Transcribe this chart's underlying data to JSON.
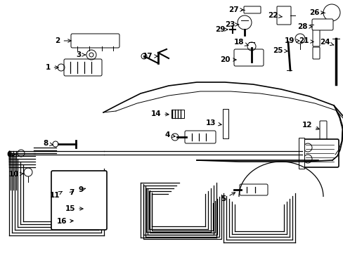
{
  "bg_color": "#ffffff",
  "fig_width": 4.89,
  "fig_height": 3.6,
  "dpi": 100,
  "car_arch_outer": {
    "x": [
      0.3,
      0.36,
      0.45,
      0.55,
      0.65,
      0.73,
      0.8,
      0.87,
      0.93,
      0.97,
      0.99
    ],
    "y": [
      0.87,
      0.89,
      0.9,
      0.89,
      0.86,
      0.82,
      0.76,
      0.69,
      0.61,
      0.52,
      0.43
    ]
  },
  "car_arch_inner": {
    "x": [
      0.34,
      0.4,
      0.5,
      0.59,
      0.67,
      0.74,
      0.81,
      0.87,
      0.92,
      0.96
    ],
    "y": [
      0.85,
      0.87,
      0.87,
      0.85,
      0.82,
      0.77,
      0.71,
      0.64,
      0.56,
      0.47
    ]
  },
  "car_rear_outer": {
    "x": [
      0.97,
      0.99,
      1.0,
      0.99,
      0.97,
      0.94,
      0.9
    ],
    "y": [
      0.52,
      0.43,
      0.35,
      0.27,
      0.22,
      0.19,
      0.18
    ]
  },
  "car_trunk_line": {
    "x": [
      0.9,
      0.82,
      0.72,
      0.62,
      0.52,
      0.43
    ],
    "y": [
      0.18,
      0.19,
      0.19,
      0.19,
      0.19,
      0.19
    ]
  },
  "label_fontsize": 7.5,
  "lw_main": 1.2,
  "lw_thin": 0.7,
  "lw_pipe": 0.9
}
